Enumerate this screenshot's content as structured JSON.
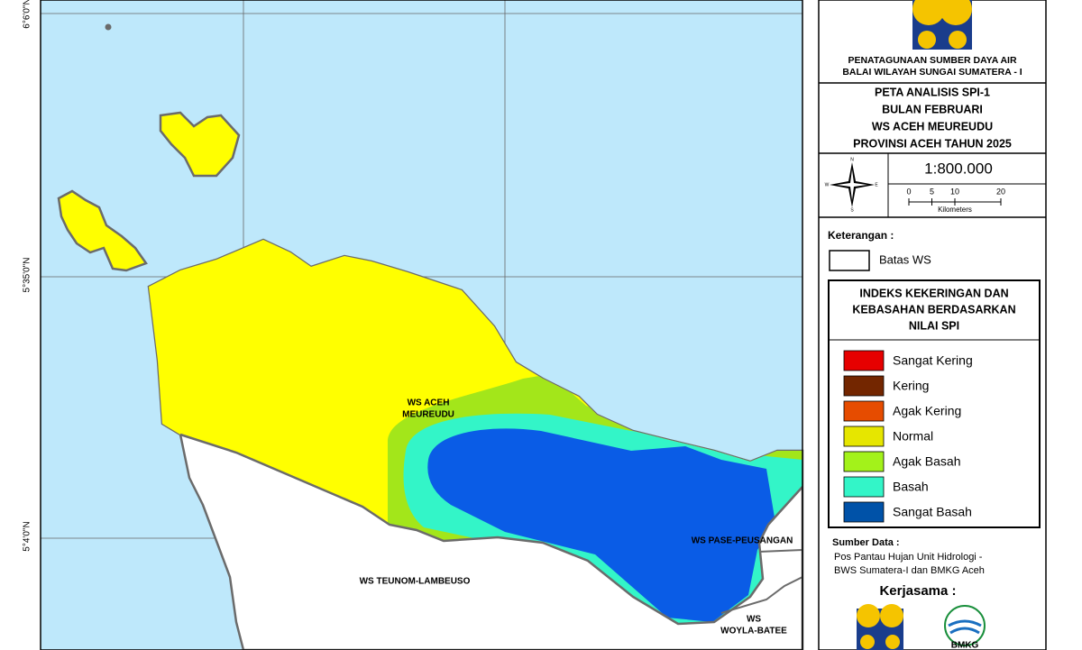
{
  "map": {
    "lat_labels": [
      "6°6'0\"N",
      "5°35'0\"N",
      "5°4'0\"N"
    ],
    "regions": {
      "aceh_meureudu": [
        "WS ACEH",
        "MEUREUDU"
      ],
      "teunom": "WS TEUNOM-LAMBEUSO",
      "pase": "WS PASE-PEUSANGAN",
      "woyla": [
        "WS",
        "WOYLA-BATEE"
      ]
    }
  },
  "header": {
    "org": [
      "PENATAGUNAAN SUMBER DAYA AIR",
      "BALAI WILAYAH SUNGAI SUMATERA - I"
    ]
  },
  "title": [
    "PETA ANALISIS SPI-1",
    "BULAN FEBRUARI",
    "WS ACEH MEUREUDU",
    "PROVINSI ACEH TAHUN 2025"
  ],
  "compass": {
    "n": "N",
    "s": "S",
    "e": "E",
    "w": "W"
  },
  "scale": {
    "ratio": "1:800.000",
    "ticks": [
      0,
      5,
      10,
      20
    ],
    "unit": "Kilometers"
  },
  "legend": {
    "heading": "Keterangan :",
    "boundary": "Batas WS",
    "title": [
      "INDEKS KEKERINGAN DAN",
      "KEBASAHAN BERDASARKAN",
      "NILAI SPI"
    ],
    "items": [
      {
        "label": "Sangat Kering",
        "color": "#e60000"
      },
      {
        "label": "Kering",
        "color": "#732600"
      },
      {
        "label": "Agak Kering",
        "color": "#e64c00"
      },
      {
        "label": "Normal",
        "color": "#e6e600"
      },
      {
        "label": "Agak Basah",
        "color": "#a3f21a"
      },
      {
        "label": "Basah",
        "color": "#33f5c8"
      },
      {
        "label": "Sangat Basah",
        "color": "#0052a8"
      }
    ]
  },
  "source": {
    "heading": "Sumber Data :",
    "lines": [
      "Pos Pantau Hujan Unit Hidrologi -",
      "BWS Sumatera-I dan BMKG Aceh"
    ]
  },
  "partners": {
    "heading": "Kerjasama :",
    "bmkg": "BMKG"
  }
}
